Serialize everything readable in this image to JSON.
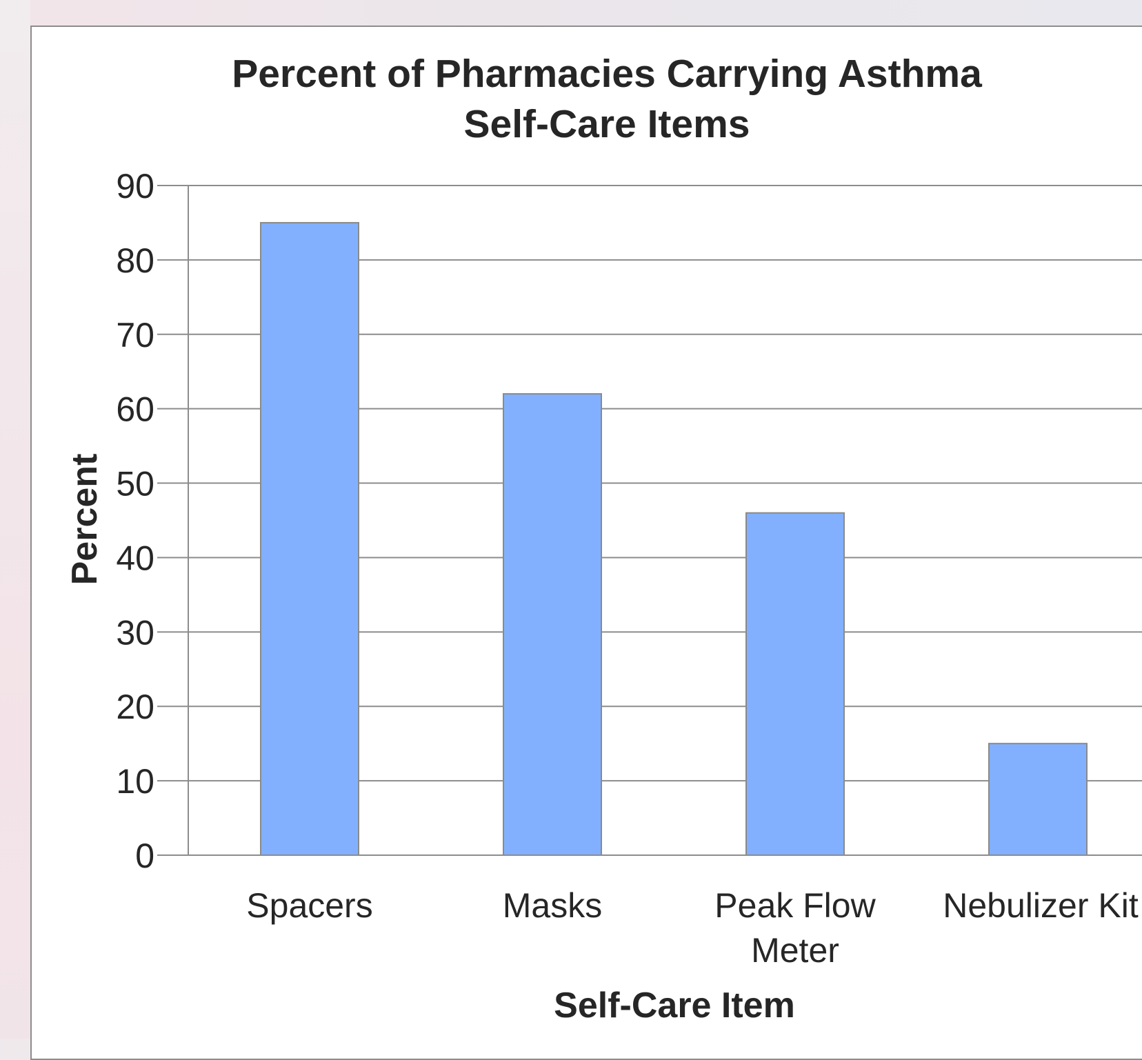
{
  "chart_data": {
    "type": "bar",
    "title_lines": [
      "Percent of Pharmacies Carrying Asthma",
      "Self-Care Items"
    ],
    "xlabel": "Self-Care Item",
    "ylabel": "Percent",
    "categories": [
      "Spacers",
      "Masks",
      "Peak Flow Meter",
      "Nebulizer Kit"
    ],
    "category_lines": [
      [
        "Spacers"
      ],
      [
        "Masks"
      ],
      [
        "Peak Flow",
        "Meter"
      ],
      [
        "Nebulizer Kit"
      ]
    ],
    "values": [
      85,
      62,
      46,
      15
    ],
    "ylim": [
      0,
      90
    ],
    "yticks": [
      0,
      10,
      20,
      30,
      40,
      50,
      60,
      70,
      80,
      90
    ],
    "grid": true,
    "legend": "none",
    "bar_color": "#82b0ff",
    "bar_edge_color": "#8a8a8a"
  }
}
